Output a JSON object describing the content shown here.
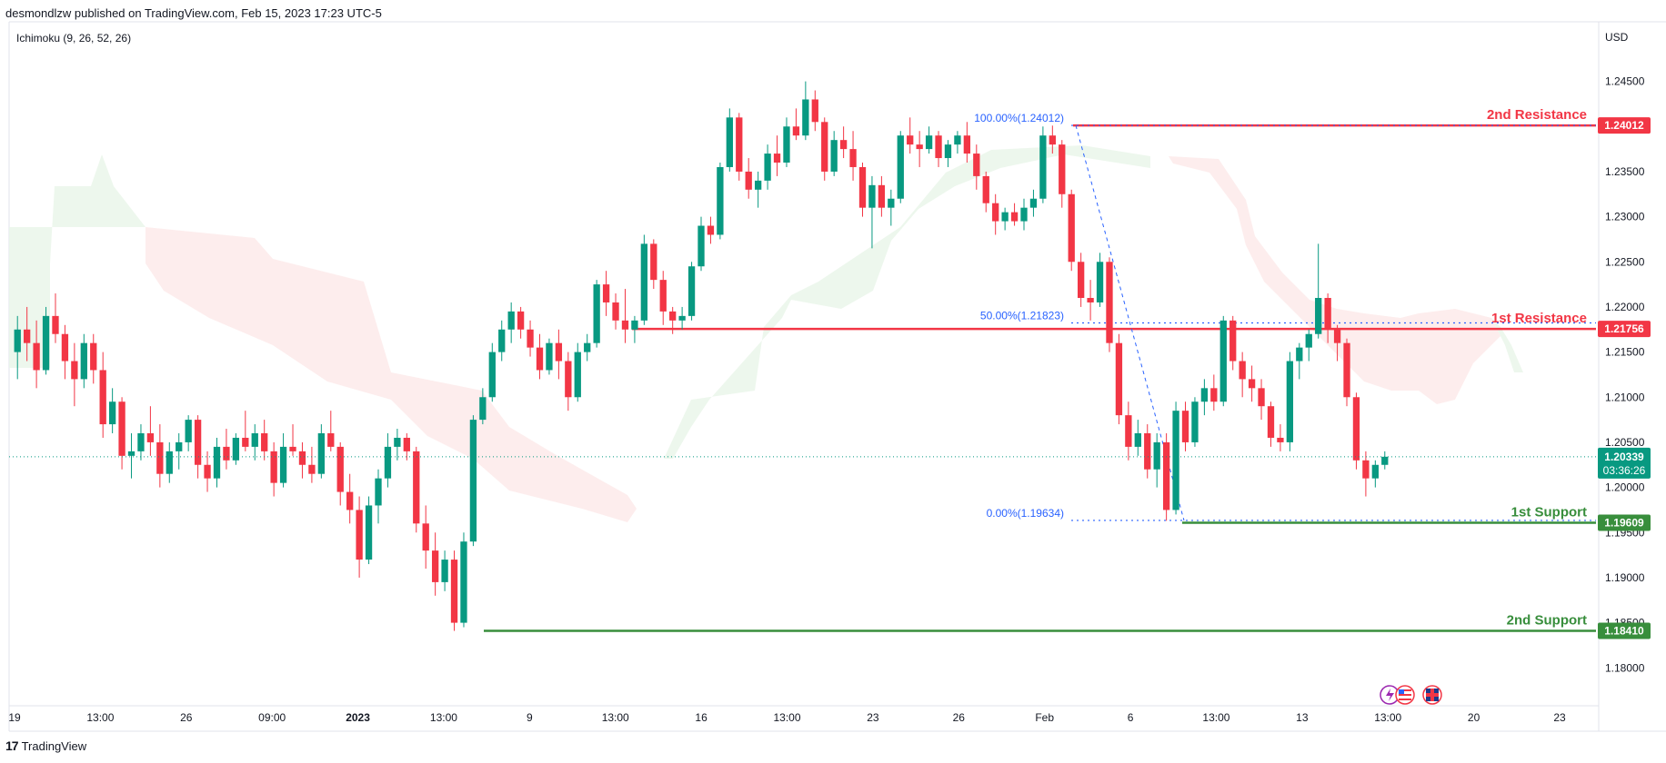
{
  "header": {
    "publisher": "desmondlzw published on TradingView.com, Feb 15, 2023 17:23 UTC-5"
  },
  "footer": {
    "brand": "TradingView"
  },
  "chart_data": {
    "type": "candlestick",
    "indicator": "Ichimoku (9, 26, 52, 26)",
    "currency": "USD",
    "y_ticks": [
      "1.24500",
      "1.24000",
      "1.23500",
      "1.23000",
      "1.22500",
      "1.22000",
      "1.21500",
      "1.21000",
      "1.20500",
      "1.20000",
      "1.19500",
      "1.19000",
      "1.18500",
      "1.18000"
    ],
    "x_ticks": [
      "19",
      "13:00",
      "26",
      "09:00",
      "2023",
      "13:00",
      "9",
      "13:00",
      "16",
      "13:00",
      "23",
      "26",
      "Feb",
      "6",
      "13:00",
      "13",
      "13:00",
      "20",
      "23"
    ],
    "ylim": [
      1.176,
      1.251
    ],
    "current_price": {
      "value": "1.20339",
      "countdown": "03:36:26",
      "color": "#089981"
    },
    "levels": [
      {
        "name": "2nd Resistance",
        "value": 1.24012,
        "tag": "1.24012",
        "color": "#f23645"
      },
      {
        "name": "1st Resistance",
        "value": 1.21756,
        "tag": "1.21756",
        "color": "#f23645"
      },
      {
        "name": "1st Support",
        "value": 1.19609,
        "tag": "1.19609",
        "color": "#388e3c"
      },
      {
        "name": "2nd Support",
        "value": 1.1841,
        "tag": "1.18410",
        "color": "#388e3c"
      }
    ],
    "fibonacci": [
      {
        "label": "100.00%(1.24012)",
        "value": 1.24012
      },
      {
        "label": "50.00%(1.21823)",
        "value": 1.21823
      },
      {
        "label": "0.00%(1.19634)",
        "value": 1.19634
      }
    ],
    "candles": [
      [
        1.215,
        1.219,
        1.212,
        1.2175
      ],
      [
        1.2175,
        1.22,
        1.214,
        1.216
      ],
      [
        1.216,
        1.2185,
        1.211,
        1.213
      ],
      [
        1.213,
        1.22,
        1.2125,
        1.219
      ],
      [
        1.219,
        1.2215,
        1.216,
        1.217
      ],
      [
        1.217,
        1.218,
        1.212,
        1.214
      ],
      [
        1.214,
        1.216,
        1.209,
        1.212
      ],
      [
        1.212,
        1.217,
        1.211,
        1.216
      ],
      [
        1.216,
        1.217,
        1.2115,
        1.213
      ],
      [
        1.213,
        1.215,
        1.2055,
        1.207
      ],
      [
        1.207,
        1.211,
        1.206,
        1.2095
      ],
      [
        1.2095,
        1.21,
        1.202,
        1.2035
      ],
      [
        1.2035,
        1.206,
        1.201,
        1.204
      ],
      [
        1.204,
        1.207,
        1.203,
        1.206
      ],
      [
        1.206,
        1.209,
        1.2035,
        1.205
      ],
      [
        1.205,
        1.207,
        1.2,
        1.2015
      ],
      [
        1.2015,
        1.205,
        1.2005,
        1.204
      ],
      [
        1.204,
        1.206,
        1.202,
        1.205
      ],
      [
        1.205,
        1.208,
        1.204,
        1.2075
      ],
      [
        1.2075,
        1.208,
        1.201,
        1.2025
      ],
      [
        1.2025,
        1.204,
        1.1995,
        1.201
      ],
      [
        1.201,
        1.2055,
        1.2,
        1.2045
      ],
      [
        1.2045,
        1.2065,
        1.202,
        1.203
      ],
      [
        1.203,
        1.206,
        1.2025,
        1.2055
      ],
      [
        1.2055,
        1.2085,
        1.204,
        1.2045
      ],
      [
        1.2045,
        1.207,
        1.203,
        1.206
      ],
      [
        1.206,
        1.2075,
        1.203,
        1.204
      ],
      [
        1.204,
        1.205,
        1.199,
        1.2005
      ],
      [
        1.2005,
        1.206,
        1.2,
        1.2045
      ],
      [
        1.2045,
        1.207,
        1.2035,
        1.204
      ],
      [
        1.204,
        1.205,
        1.201,
        1.2025
      ],
      [
        1.2025,
        1.2045,
        1.2005,
        1.2015
      ],
      [
        1.2015,
        1.207,
        1.201,
        1.206
      ],
      [
        1.206,
        1.2085,
        1.204,
        1.2045
      ],
      [
        1.2045,
        1.205,
        1.198,
        1.1995
      ],
      [
        1.1995,
        1.2015,
        1.196,
        1.1975
      ],
      [
        1.1975,
        1.199,
        1.19,
        1.192
      ],
      [
        1.192,
        1.199,
        1.1915,
        1.198
      ],
      [
        1.198,
        1.202,
        1.196,
        1.201
      ],
      [
        1.201,
        1.206,
        1.2,
        1.2045
      ],
      [
        1.2045,
        1.2065,
        1.203,
        1.2055
      ],
      [
        1.2055,
        1.206,
        1.203,
        1.204
      ],
      [
        1.204,
        1.2045,
        1.195,
        1.196
      ],
      [
        1.196,
        1.198,
        1.191,
        1.193
      ],
      [
        1.193,
        1.195,
        1.188,
        1.1895
      ],
      [
        1.1895,
        1.193,
        1.1885,
        1.192
      ],
      [
        1.192,
        1.193,
        1.1841,
        1.185
      ],
      [
        1.185,
        1.195,
        1.1845,
        1.194
      ],
      [
        1.194,
        1.208,
        1.1935,
        1.2075
      ],
      [
        1.2075,
        1.211,
        1.207,
        1.21
      ],
      [
        1.21,
        1.216,
        1.2095,
        1.215
      ],
      [
        1.215,
        1.2185,
        1.214,
        1.2175
      ],
      [
        1.2175,
        1.2205,
        1.216,
        1.2195
      ],
      [
        1.2195,
        1.22,
        1.2165,
        1.2175
      ],
      [
        1.2175,
        1.2185,
        1.2145,
        1.2155
      ],
      [
        1.2155,
        1.217,
        1.212,
        1.213
      ],
      [
        1.213,
        1.2165,
        1.2125,
        1.216
      ],
      [
        1.216,
        1.2175,
        1.212,
        1.214
      ],
      [
        1.214,
        1.215,
        1.2085,
        1.21
      ],
      [
        1.21,
        1.216,
        1.2095,
        1.215
      ],
      [
        1.215,
        1.217,
        1.214,
        1.216
      ],
      [
        1.216,
        1.223,
        1.2155,
        1.2225
      ],
      [
        1.2225,
        1.224,
        1.219,
        1.2205
      ],
      [
        1.2205,
        1.2215,
        1.2175,
        1.2185
      ],
      [
        1.2185,
        1.222,
        1.216,
        1.2175
      ],
      [
        1.2175,
        1.219,
        1.216,
        1.2185
      ],
      [
        1.2185,
        1.228,
        1.218,
        1.227
      ],
      [
        1.227,
        1.2275,
        1.222,
        1.223
      ],
      [
        1.223,
        1.224,
        1.218,
        1.2195
      ],
      [
        1.2195,
        1.22,
        1.217,
        1.2185
      ],
      [
        1.2185,
        1.22,
        1.2175,
        1.219
      ],
      [
        1.219,
        1.225,
        1.2185,
        1.2245
      ],
      [
        1.2245,
        1.23,
        1.224,
        1.229
      ],
      [
        1.229,
        1.23,
        1.227,
        1.228
      ],
      [
        1.228,
        1.236,
        1.2275,
        1.2355
      ],
      [
        1.2355,
        1.242,
        1.235,
        1.241
      ],
      [
        1.241,
        1.2415,
        1.234,
        1.235
      ],
      [
        1.235,
        1.2365,
        1.232,
        1.233
      ],
      [
        1.233,
        1.235,
        1.231,
        1.234
      ],
      [
        1.234,
        1.238,
        1.233,
        1.237
      ],
      [
        1.237,
        1.239,
        1.2345,
        1.236
      ],
      [
        1.236,
        1.241,
        1.2355,
        1.24
      ],
      [
        1.24,
        1.242,
        1.2385,
        1.239
      ],
      [
        1.239,
        1.245,
        1.2385,
        1.243
      ],
      [
        1.243,
        1.244,
        1.2395,
        1.2405
      ],
      [
        1.2405,
        1.241,
        1.234,
        1.235
      ],
      [
        1.235,
        1.2395,
        1.2345,
        1.2385
      ],
      [
        1.2385,
        1.24,
        1.2365,
        1.2375
      ],
      [
        1.2375,
        1.2395,
        1.234,
        1.2355
      ],
      [
        1.2355,
        1.236,
        1.23,
        1.231
      ],
      [
        1.231,
        1.2345,
        1.2265,
        1.2335
      ],
      [
        1.2335,
        1.2345,
        1.23,
        1.231
      ],
      [
        1.231,
        1.233,
        1.229,
        1.232
      ],
      [
        1.232,
        1.2395,
        1.2315,
        1.239
      ],
      [
        1.239,
        1.241,
        1.237,
        1.238
      ],
      [
        1.238,
        1.2395,
        1.2355,
        1.2375
      ],
      [
        1.2375,
        1.24,
        1.237,
        1.239
      ],
      [
        1.239,
        1.2395,
        1.2355,
        1.2365
      ],
      [
        1.2365,
        1.2385,
        1.2355,
        1.238
      ],
      [
        1.238,
        1.2395,
        1.237,
        1.239
      ],
      [
        1.239,
        1.2405,
        1.236,
        1.237
      ],
      [
        1.237,
        1.238,
        1.233,
        1.2345
      ],
      [
        1.2345,
        1.235,
        1.2305,
        1.2315
      ],
      [
        1.2315,
        1.2325,
        1.228,
        1.2295
      ],
      [
        1.2295,
        1.231,
        1.2285,
        1.2305
      ],
      [
        1.2305,
        1.2315,
        1.229,
        1.2295
      ],
      [
        1.2295,
        1.232,
        1.2285,
        1.231
      ],
      [
        1.231,
        1.233,
        1.23,
        1.232
      ],
      [
        1.232,
        1.24,
        1.2315,
        1.239
      ],
      [
        1.239,
        1.2401,
        1.237,
        1.238
      ],
      [
        1.238,
        1.2385,
        1.231,
        1.2325
      ],
      [
        1.2325,
        1.233,
        1.224,
        1.225
      ],
      [
        1.225,
        1.226,
        1.22,
        1.221
      ],
      [
        1.221,
        1.223,
        1.2185,
        1.2205
      ],
      [
        1.2205,
        1.226,
        1.22,
        1.225
      ],
      [
        1.225,
        1.2255,
        1.215,
        1.216
      ],
      [
        1.216,
        1.217,
        1.207,
        1.208
      ],
      [
        1.208,
        1.2095,
        1.203,
        1.2045
      ],
      [
        1.2045,
        1.2075,
        1.2035,
        1.206
      ],
      [
        1.206,
        1.207,
        1.201,
        1.202
      ],
      [
        1.202,
        1.206,
        1.2,
        1.205
      ],
      [
        1.205,
        1.206,
        1.1963,
        1.1975
      ],
      [
        1.1975,
        1.2095,
        1.197,
        1.2085
      ],
      [
        1.2085,
        1.2095,
        1.204,
        1.205
      ],
      [
        1.205,
        1.21,
        1.2045,
        1.2095
      ],
      [
        1.2095,
        1.212,
        1.208,
        1.211
      ],
      [
        1.211,
        1.2125,
        1.2085,
        1.2095
      ],
      [
        1.2095,
        1.219,
        1.209,
        1.2185
      ],
      [
        1.2185,
        1.219,
        1.213,
        1.214
      ],
      [
        1.214,
        1.215,
        1.21,
        1.212
      ],
      [
        1.212,
        1.2135,
        1.2095,
        1.211
      ],
      [
        1.211,
        1.212,
        1.2075,
        1.209
      ],
      [
        1.209,
        1.2095,
        1.2045,
        1.2055
      ],
      [
        1.2055,
        1.207,
        1.204,
        1.205
      ],
      [
        1.205,
        1.215,
        1.204,
        1.214
      ],
      [
        1.214,
        1.216,
        1.212,
        1.2155
      ],
      [
        1.2155,
        1.2175,
        1.214,
        1.217
      ],
      [
        1.217,
        1.227,
        1.2165,
        1.221
      ],
      [
        1.221,
        1.2215,
        1.216,
        1.2175
      ],
      [
        1.2175,
        1.218,
        1.214,
        1.216
      ],
      [
        1.216,
        1.2165,
        1.209,
        1.21
      ],
      [
        1.21,
        1.2105,
        1.202,
        1.203
      ],
      [
        1.203,
        1.204,
        1.199,
        1.201
      ],
      [
        1.201,
        1.203,
        1.2,
        1.2025
      ],
      [
        1.2025,
        1.204,
        1.202,
        1.2034
      ]
    ]
  }
}
